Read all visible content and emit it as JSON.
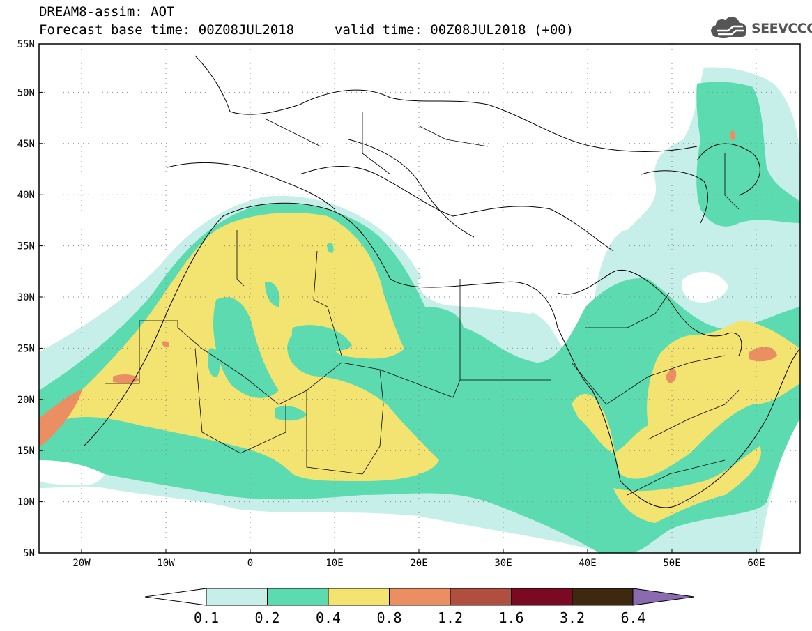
{
  "header": {
    "title": "DREAM8-assim: AOT",
    "base_time": "Forecast base time: 00Z08JUL2018",
    "valid_time": "valid time: 00Z08JUL2018 (+00)",
    "logo_text": "SEEVCCC"
  },
  "map": {
    "lon_range": [
      -25,
      65
    ],
    "lat_range": [
      5,
      55
    ],
    "lat_ticks": [
      "5N",
      "10N",
      "15N",
      "20N",
      "25N",
      "30N",
      "35N",
      "40N",
      "45N",
      "50N",
      "55N"
    ],
    "lon_ticks": [
      "20W",
      "10W",
      "0",
      "10E",
      "20E",
      "30E",
      "40E",
      "50E",
      "60E"
    ]
  },
  "colorbar": {
    "levels": [
      "0.1",
      "0.2",
      "0.4",
      "0.8",
      "1.2",
      "1.6",
      "3.2",
      "6.4"
    ],
    "colors": [
      "#c6efe9",
      "#5cdbb1",
      "#f3e371",
      "#eb8f62",
      "#b04f40",
      "#7a0a24",
      "#3e2810",
      "#8a6bb0"
    ],
    "under_color": "#ffffff"
  }
}
